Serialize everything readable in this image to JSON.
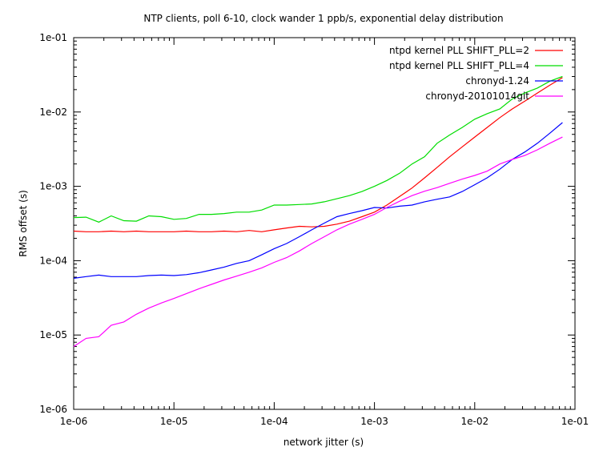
{
  "chart_data": {
    "type": "line",
    "title": "NTP clients, poll 6-10, clock wander 1 ppb/s, exponential delay distribution",
    "xlabel": "network jitter (s)",
    "ylabel": "RMS offset (s)",
    "xscale": "log",
    "yscale": "log",
    "xlim": [
      1e-06,
      0.1
    ],
    "ylim": [
      1e-06,
      0.1
    ],
    "xticks": [
      "1e-06",
      "1e-05",
      "1e-04",
      "1e-03",
      "1e-02",
      "1e-01"
    ],
    "yticks": [
      "1e-06",
      "1e-05",
      "1e-04",
      "1e-03",
      "1e-02",
      "1e-01"
    ],
    "grid": false,
    "legend_position": "top-right",
    "series": [
      {
        "name": "ntpd kernel PLL SHIFT_PLL=2",
        "color": "#ff0000",
        "x": [
          1e-06,
          1.33e-06,
          1.78e-06,
          2.37e-06,
          3.16e-06,
          4.22e-06,
          5.62e-06,
          7.5e-06,
          1e-05,
          1.33e-05,
          1.78e-05,
          2.37e-05,
          3.16e-05,
          4.22e-05,
          5.62e-05,
          7.5e-05,
          0.0001,
          0.000133,
          0.000178,
          0.000237,
          0.000316,
          0.000422,
          0.000562,
          0.00075,
          0.001,
          0.00133,
          0.00178,
          0.00237,
          0.00316,
          0.00422,
          0.00562,
          0.0075,
          0.01,
          0.0133,
          0.0178,
          0.0237,
          0.0316,
          0.0422,
          0.0562,
          0.075
        ],
        "y": [
          0.00025,
          0.000245,
          0.000245,
          0.00025,
          0.000245,
          0.00025,
          0.000245,
          0.000245,
          0.000245,
          0.00025,
          0.000245,
          0.000245,
          0.00025,
          0.000245,
          0.000255,
          0.000245,
          0.00026,
          0.000275,
          0.00029,
          0.000285,
          0.00029,
          0.00031,
          0.00034,
          0.00039,
          0.00045,
          0.00056,
          0.00073,
          0.00095,
          0.0013,
          0.0018,
          0.0025,
          0.0034,
          0.0046,
          0.0062,
          0.0084,
          0.011,
          0.014,
          0.018,
          0.023,
          0.029
        ]
      },
      {
        "name": "ntpd kernel PLL SHIFT_PLL=4",
        "color": "#00dd00",
        "x": [
          1e-06,
          1.33e-06,
          1.78e-06,
          2.37e-06,
          3.16e-06,
          4.22e-06,
          5.62e-06,
          7.5e-06,
          1e-05,
          1.33e-05,
          1.78e-05,
          2.37e-05,
          3.16e-05,
          4.22e-05,
          5.62e-05,
          7.5e-05,
          0.0001,
          0.000133,
          0.000178,
          0.000237,
          0.000316,
          0.000422,
          0.000562,
          0.00075,
          0.001,
          0.00133,
          0.00178,
          0.00237,
          0.00316,
          0.00422,
          0.00562,
          0.0075,
          0.01,
          0.0133,
          0.0178,
          0.0237,
          0.0316,
          0.0422,
          0.0562,
          0.075
        ],
        "y": [
          0.00038,
          0.000385,
          0.00033,
          0.0004,
          0.000345,
          0.00034,
          0.0004,
          0.00039,
          0.00036,
          0.00037,
          0.00042,
          0.00042,
          0.00043,
          0.00045,
          0.00045,
          0.00048,
          0.00056,
          0.00056,
          0.00057,
          0.00058,
          0.00062,
          0.00068,
          0.00075,
          0.00085,
          0.001,
          0.0012,
          0.0015,
          0.002,
          0.0025,
          0.0038,
          0.0049,
          0.0062,
          0.008,
          0.0095,
          0.011,
          0.015,
          0.018,
          0.021,
          0.026,
          0.03
        ]
      },
      {
        "name": "chronyd-1.24",
        "color": "#0000ff",
        "x": [
          1e-06,
          1.33e-06,
          1.78e-06,
          2.37e-06,
          3.16e-06,
          4.22e-06,
          5.62e-06,
          7.5e-06,
          1e-05,
          1.33e-05,
          1.78e-05,
          2.37e-05,
          3.16e-05,
          4.22e-05,
          5.62e-05,
          7.5e-05,
          0.0001,
          0.000133,
          0.000178,
          0.000237,
          0.000316,
          0.000422,
          0.000562,
          0.00075,
          0.001,
          0.00133,
          0.00178,
          0.00237,
          0.00316,
          0.00422,
          0.00562,
          0.0075,
          0.01,
          0.0133,
          0.0178,
          0.0237,
          0.0316,
          0.0422,
          0.0562,
          0.075
        ],
        "y": [
          5.8e-05,
          6.1e-05,
          6.4e-05,
          6.1e-05,
          6.1e-05,
          6.1e-05,
          6.3e-05,
          6.4e-05,
          6.3e-05,
          6.5e-05,
          6.9e-05,
          7.5e-05,
          8.2e-05,
          9.2e-05,
          0.0001,
          0.00012,
          0.000145,
          0.00017,
          0.00021,
          0.00026,
          0.00032,
          0.00039,
          0.00043,
          0.00047,
          0.00052,
          0.00051,
          0.00054,
          0.00056,
          0.00062,
          0.00067,
          0.00072,
          0.00085,
          0.00105,
          0.0013,
          0.0017,
          0.0023,
          0.0029,
          0.0038,
          0.0052,
          0.0072
        ]
      },
      {
        "name": "chronyd-20101014git",
        "color": "#ff00ff",
        "x": [
          1e-06,
          1.33e-06,
          1.78e-06,
          2.37e-06,
          3.16e-06,
          4.22e-06,
          5.62e-06,
          7.5e-06,
          1e-05,
          1.33e-05,
          1.78e-05,
          2.37e-05,
          3.16e-05,
          4.22e-05,
          5.62e-05,
          7.5e-05,
          0.0001,
          0.000133,
          0.000178,
          0.000237,
          0.000316,
          0.000422,
          0.000562,
          0.00075,
          0.001,
          0.00133,
          0.00178,
          0.00237,
          0.00316,
          0.00422,
          0.00562,
          0.0075,
          0.01,
          0.0133,
          0.0178,
          0.0237,
          0.0316,
          0.0422,
          0.0562,
          0.075
        ],
        "y": [
          7e-06,
          9e-06,
          9.5e-06,
          1.35e-05,
          1.5e-05,
          1.9e-05,
          2.3e-05,
          2.7e-05,
          3.1e-05,
          3.6e-05,
          4.2e-05,
          4.8e-05,
          5.5e-05,
          6.2e-05,
          7e-05,
          8e-05,
          9.5e-05,
          0.00011,
          0.000135,
          0.00017,
          0.00021,
          0.00026,
          0.00031,
          0.00036,
          0.00042,
          0.00052,
          0.00063,
          0.00075,
          0.00086,
          0.00096,
          0.0011,
          0.00125,
          0.0014,
          0.0016,
          0.002,
          0.0023,
          0.0026,
          0.0031,
          0.0038,
          0.0046
        ]
      }
    ]
  }
}
